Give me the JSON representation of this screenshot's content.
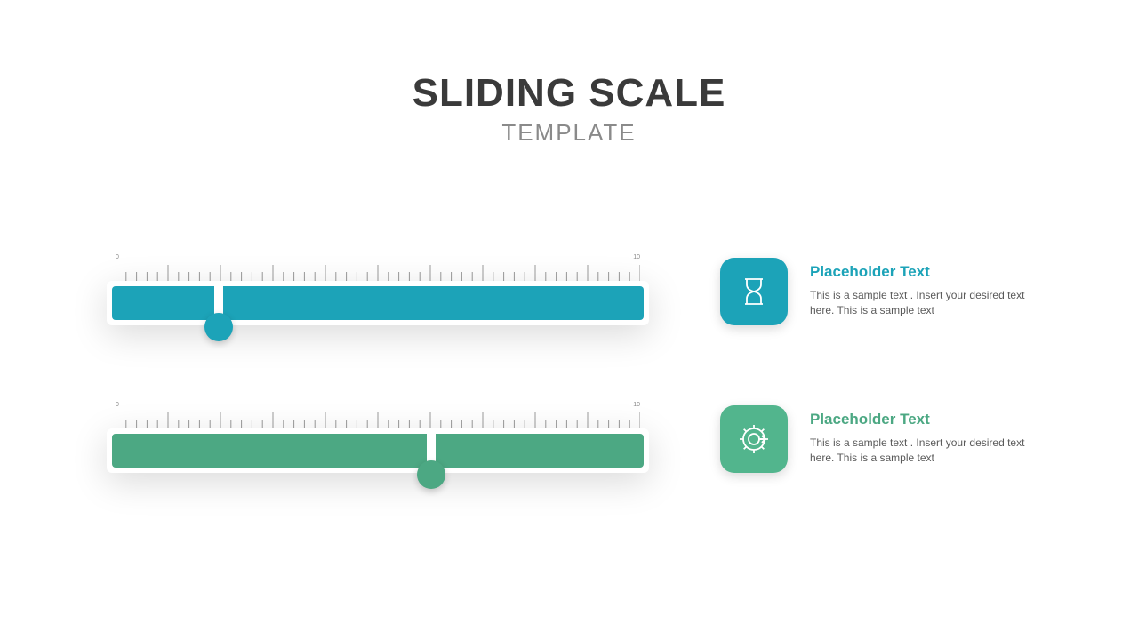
{
  "header": {
    "title": "SLIDING SCALE",
    "subtitle": "TEMPLATE",
    "title_color": "#3a3a3a",
    "subtitle_color": "#8a8a8a"
  },
  "ruler": {
    "min_label": "0",
    "max_label": "10",
    "major_ticks": 11,
    "minor_per_major": 5,
    "tick_color": "#9a9a9a",
    "major_tick_height": 18,
    "minor_tick_height": 10
  },
  "sliders": [
    {
      "id": "slider-1",
      "bar_color": "#1ca3b8",
      "handle_color": "#1ca3b8",
      "icon_box_color": "#1ca3b8",
      "value_percent": 20,
      "title": "Placeholder Text",
      "title_color": "#1ca3b8",
      "description": "This is a sample text . Insert your desired text here. This is a sample text",
      "icon": "hourglass"
    },
    {
      "id": "slider-2",
      "bar_color": "#4ca883",
      "handle_color": "#4ca883",
      "icon_box_color": "#52b58d",
      "value_percent": 60,
      "title": "Placeholder Text",
      "title_color": "#4ca883",
      "description": "This is a sample text . Insert your desired text here. This is a sample text",
      "icon": "gear"
    }
  ],
  "background_color": "#ffffff"
}
